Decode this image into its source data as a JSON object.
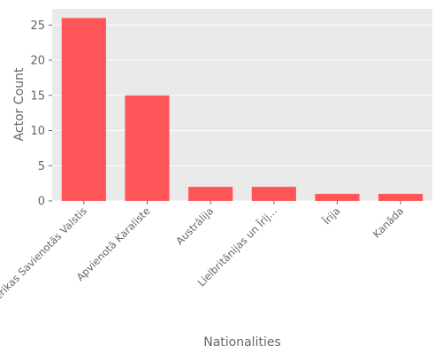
{
  "chart_data": {
    "type": "bar",
    "title": "",
    "xlabel": "Nationalities",
    "ylabel": "Actor Count",
    "categories": [
      "Amerikas Savienotās Valstis",
      "Apvienotā Karaliste",
      "Austrālija",
      "Lielbritānijas un Īrij...",
      "Īrija",
      "Kanāda"
    ],
    "values": [
      26,
      15,
      2,
      2,
      1,
      1
    ],
    "ylim": [
      0,
      27.3
    ],
    "yticks": [
      0,
      5,
      10,
      15,
      20,
      25
    ],
    "grid": true,
    "legend": "none",
    "colors": {
      "bar": "#ff5558",
      "plot_background": "#eaeaea",
      "grid": "#ffffff",
      "text": "#666666"
    }
  }
}
